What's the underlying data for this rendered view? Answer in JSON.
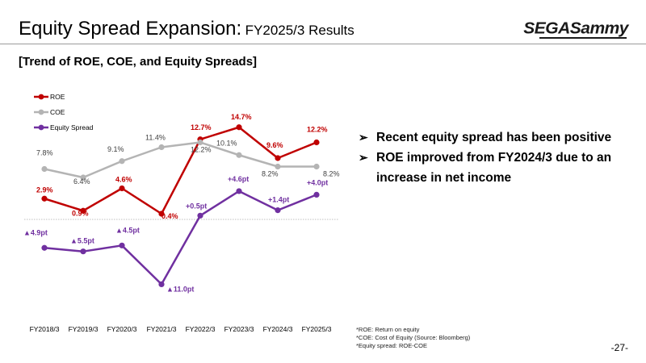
{
  "header": {
    "title_main": "Equity Spread Expansion:",
    "title_sub": "FY2025/3 Results",
    "logo_text": "SEGASammy"
  },
  "subtitle": "[Trend of ROE, COE, and Equity Spreads]",
  "bullets": [
    "Recent equity spread has been positive",
    "ROE improved from FY2024/3 due to an increase in net income"
  ],
  "notes": [
    "*ROE: Return on equity",
    "*COE: Cost of Equity (Source: Bloomberg)",
    "*Equity spread: ROE-COE"
  ],
  "page_number": "-27-",
  "chart_data": {
    "type": "line",
    "categories": [
      "FY2018/3",
      "FY2019/3",
      "FY2020/3",
      "FY2021/3",
      "FY2022/3",
      "FY2023/3",
      "FY2024/3",
      "FY2025/3"
    ],
    "legend_position": "top-left",
    "grid": false,
    "series": [
      {
        "name": "ROE",
        "color": "#c00000",
        "values": [
          2.9,
          0.9,
          4.6,
          0.4,
          12.7,
          14.7,
          9.6,
          12.2
        ],
        "labels": [
          "2.9%",
          "0.9%",
          "4.6%",
          "0.4%",
          "12.7%",
          "14.7%",
          "9.6%",
          "12.2%"
        ]
      },
      {
        "name": "COE",
        "color": "#b4b4b4",
        "values": [
          7.8,
          6.4,
          9.1,
          11.4,
          12.2,
          10.1,
          8.2,
          8.2
        ],
        "labels": [
          "7.8%",
          "6.4%",
          "9.1%",
          "11.4%",
          "12.2%",
          "10.1%",
          "8.2%",
          "8.2%"
        ]
      },
      {
        "name": "Equity Spread",
        "color": "#7030a0",
        "values": [
          -4.9,
          -5.5,
          -4.5,
          -11.0,
          0.5,
          4.6,
          1.4,
          4.0
        ],
        "labels": [
          "▲4.9pt",
          "▲5.5pt",
          "▲4.5pt",
          "▲11.0pt",
          "+0.5pt",
          "+4.6pt",
          "+1.4pt",
          "+4.0pt"
        ]
      }
    ]
  }
}
